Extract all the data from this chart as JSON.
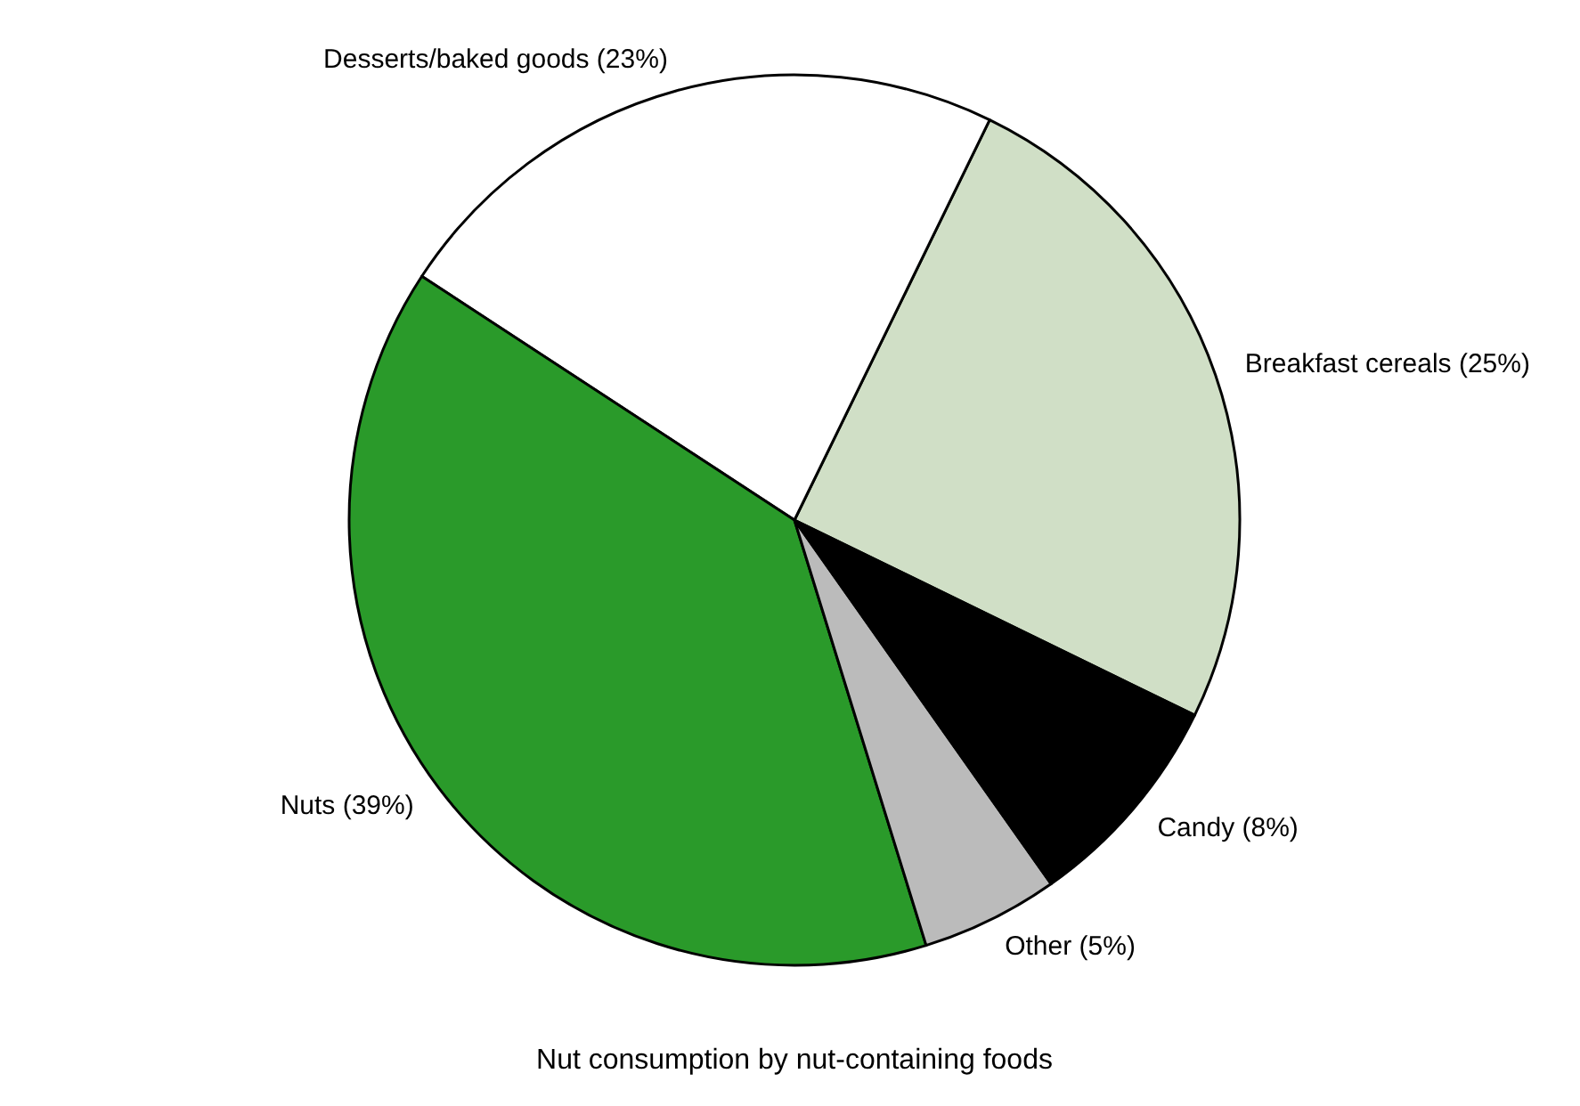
{
  "chart_data": {
    "type": "pie",
    "title": "Nut consumption by nut-containing foods",
    "categories": [
      "Breakfast cereals (25%)",
      "Desserts/baked goods (23%)",
      "Nuts (39%)",
      "Other (5%)",
      "Candy (8%)"
    ],
    "values": [
      25,
      23,
      39,
      5,
      8
    ],
    "colors": [
      "#d0dfc6",
      "#ffffff",
      "#2a9a2a",
      "#bbbbbb",
      "#000000"
    ]
  }
}
